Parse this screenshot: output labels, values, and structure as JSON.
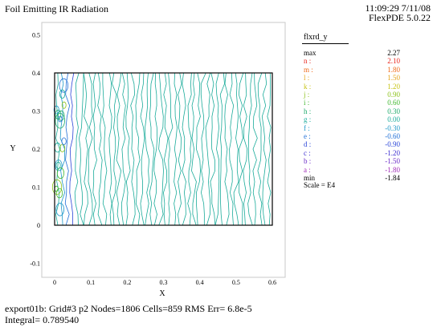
{
  "header": {
    "title": "Foil Emitting IR Radiation",
    "timestamp": "11:09:29 7/11/08",
    "version": "FlexPDE 5.0.22"
  },
  "legend": {
    "variable": "flxrd_y",
    "entries": [
      {
        "label": "max",
        "value": "2.27",
        "color": "#000000"
      },
      {
        "label": "n :",
        "value": "2.10",
        "color": "#e8251d"
      },
      {
        "label": "m :",
        "value": "1.80",
        "color": "#ef6a1a"
      },
      {
        "label": "l :",
        "value": "1.50",
        "color": "#e5a51e"
      },
      {
        "label": "k :",
        "value": "1.20",
        "color": "#c7c416"
      },
      {
        "label": "j :",
        "value": "0.90",
        "color": "#8cc21a"
      },
      {
        "label": "i :",
        "value": "0.60",
        "color": "#40b830"
      },
      {
        "label": "h :",
        "value": "0.30",
        "color": "#1daa6a"
      },
      {
        "label": "g :",
        "value": "0.00",
        "color": "#1aab9a"
      },
      {
        "label": "f :",
        "value": "-0.30",
        "color": "#1d97c8"
      },
      {
        "label": "e :",
        "value": "-0.60",
        "color": "#1f6fd6"
      },
      {
        "label": "d :",
        "value": "-0.90",
        "color": "#2a45d8"
      },
      {
        "label": "c :",
        "value": "-1.20",
        "color": "#3d2fd0"
      },
      {
        "label": "b :",
        "value": "-1.50",
        "color": "#6b2cc8"
      },
      {
        "label": "a :",
        "value": "-1.80",
        "color": "#a02bb8"
      },
      {
        "label": "min",
        "value": "-1.84",
        "color": "#000000"
      }
    ],
    "scale": "Scale = E4"
  },
  "chart_data": {
    "type": "contour",
    "variable": "flxrd_y",
    "xlabel": "X",
    "ylabel": "Y",
    "xlim": [
      -0.02,
      0.62
    ],
    "ylim": [
      -0.12,
      0.53
    ],
    "xticks": [
      "0",
      "0.1",
      "0.2",
      "0.3",
      "0.4",
      "0.5",
      "0.6"
    ],
    "yticks": [
      "0.5",
      "0.4",
      "0.3",
      "0.2",
      "0.1",
      "0",
      "-0.1"
    ],
    "domain": {
      "x": [
        0,
        0.6
      ],
      "y": [
        0,
        0.4
      ]
    },
    "levels": [
      {
        "label": "n",
        "value": 2.1
      },
      {
        "label": "m",
        "value": 1.8
      },
      {
        "label": "l",
        "value": 1.5
      },
      {
        "label": "k",
        "value": 1.2
      },
      {
        "label": "j",
        "value": 0.9
      },
      {
        "label": "i",
        "value": 0.6
      },
      {
        "label": "h",
        "value": 0.3
      },
      {
        "label": "g",
        "value": 0.0
      },
      {
        "label": "f",
        "value": -0.3
      },
      {
        "label": "e",
        "value": -0.6
      },
      {
        "label": "d",
        "value": -0.9
      },
      {
        "label": "c",
        "value": -1.2
      },
      {
        "label": "b",
        "value": -1.5
      },
      {
        "label": "a",
        "value": -1.8
      }
    ],
    "max": 2.27,
    "min": -1.84,
    "scale": "E4"
  },
  "footer": {
    "line1": "export01b:  Grid#3  p2  Nodes=1806 Cells=859 RMS Err= 6.8e-5",
    "line2": "Integral=  0.789540"
  }
}
